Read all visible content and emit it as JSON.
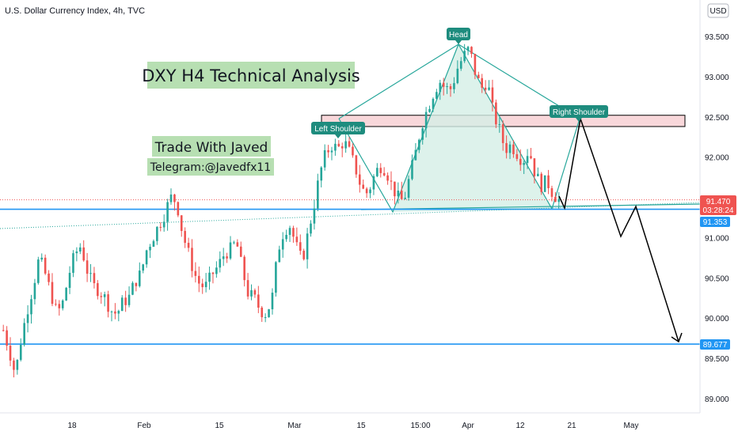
{
  "chart_data": {
    "type": "candlestick",
    "title": "U.S. Dollar Currency Index, 4h, TVC",
    "currency": "USD",
    "x_ticks": [
      "18",
      "Feb",
      "15",
      "Mar",
      "15",
      "15:00",
      "Apr",
      "12",
      "21",
      "May"
    ],
    "y_ticks": [
      "93.500",
      "93.000",
      "92.500",
      "92.000",
      "91.000",
      "90.500",
      "90.000",
      "89.500",
      "89.000"
    ],
    "ylim": [
      88.9,
      93.8
    ],
    "y_tick_values": [
      93.5,
      93.0,
      92.5,
      92.0,
      91.0,
      90.5,
      90.0,
      89.5,
      89.0
    ],
    "price_tags": {
      "current": {
        "price": "91.470",
        "countdown": "03:28:24",
        "color": "#ef5350"
      },
      "support_1": {
        "price": "91.353",
        "color": "#2196f3"
      },
      "support_2": {
        "price": "89.677",
        "color": "#2196f3"
      }
    },
    "pattern": "Head and Shoulders",
    "labels": {
      "head": "Head",
      "left_shoulder": "Left Shoulder",
      "right_shoulder": "Right Shoulder"
    },
    "resistance_zone": [
      92.38,
      92.52
    ],
    "horizontal_levels": [
      91.353,
      89.677
    ],
    "price_path": [
      [
        0,
        89.85
      ],
      [
        1,
        89.6
      ],
      [
        2,
        89.3
      ],
      [
        3,
        89.75
      ],
      [
        4,
        90.1
      ],
      [
        5,
        90.4
      ],
      [
        6,
        90.75
      ],
      [
        7,
        90.55
      ],
      [
        8,
        90.3
      ],
      [
        9,
        90.05
      ],
      [
        10,
        90.2
      ],
      [
        11,
        90.55
      ],
      [
        12,
        90.8
      ],
      [
        13,
        90.9
      ],
      [
        14,
        90.6
      ],
      [
        15,
        90.4
      ],
      [
        16,
        90.35
      ],
      [
        17,
        90.25
      ],
      [
        18,
        90.1
      ],
      [
        19,
        90.05
      ],
      [
        20,
        90.2
      ],
      [
        21,
        90.25
      ],
      [
        22,
        90.45
      ],
      [
        23,
        90.55
      ],
      [
        24,
        90.85
      ],
      [
        25,
        91.0
      ],
      [
        26,
        91.15
      ],
      [
        27,
        91.3
      ],
      [
        28,
        91.5
      ],
      [
        29,
        91.45
      ],
      [
        30,
        91.05
      ],
      [
        31,
        90.8
      ],
      [
        32,
        90.55
      ],
      [
        33,
        90.4
      ],
      [
        34,
        90.4
      ],
      [
        35,
        90.55
      ],
      [
        36,
        90.65
      ],
      [
        37,
        90.8
      ],
      [
        38,
        90.85
      ],
      [
        39,
        90.95
      ],
      [
        40,
        90.6
      ],
      [
        41,
        90.3
      ],
      [
        42,
        90.25
      ],
      [
        43,
        90.1
      ],
      [
        44,
        90.05
      ],
      [
        45,
        90.25
      ],
      [
        46,
        90.85
      ],
      [
        47,
        91.1
      ],
      [
        48,
        91.15
      ],
      [
        49,
        90.9
      ],
      [
        50,
        90.7
      ],
      [
        51,
        91.05
      ],
      [
        52,
        91.4
      ],
      [
        53,
        91.8
      ],
      [
        54,
        92.05
      ],
      [
        55,
        92.15
      ],
      [
        56,
        92.1
      ],
      [
        57,
        92.2
      ],
      [
        58,
        92.05
      ],
      [
        59,
        91.85
      ],
      [
        60,
        91.6
      ],
      [
        61,
        91.55
      ],
      [
        62,
        91.75
      ],
      [
        63,
        91.9
      ],
      [
        64,
        91.85
      ],
      [
        65,
        91.65
      ],
      [
        66,
        91.5
      ],
      [
        67,
        91.45
      ],
      [
        68,
        91.75
      ],
      [
        69,
        92.05
      ],
      [
        70,
        92.4
      ],
      [
        71,
        92.6
      ],
      [
        72,
        92.8
      ],
      [
        73,
        92.95
      ],
      [
        74,
        92.85
      ],
      [
        75,
        92.85
      ],
      [
        76,
        93.1
      ],
      [
        77,
        93.25
      ],
      [
        78,
        93.35
      ],
      [
        79,
        93.05
      ],
      [
        80,
        92.85
      ],
      [
        81,
        92.95
      ],
      [
        82,
        92.55
      ],
      [
        83,
        92.35
      ],
      [
        84,
        92.1
      ],
      [
        85,
        92.15
      ],
      [
        86,
        92.05
      ],
      [
        87,
        91.95
      ],
      [
        88,
        92.1
      ],
      [
        89,
        91.8
      ],
      [
        90,
        91.65
      ],
      [
        91,
        91.7
      ],
      [
        92,
        91.55
      ],
      [
        93,
        91.47
      ]
    ],
    "projection_path": [
      [
        92.2,
        91.38
      ],
      [
        92.48,
        92.45
      ],
      [
        91.7,
        91.0
      ],
      [
        91.4,
        91.38
      ],
      [
        89.68,
        89.7
      ]
    ]
  },
  "overlay": {
    "analysis_title": "DXY H4 Technical Analysis",
    "author": "Trade With Javed",
    "telegram": "Telegram:@Javedfx11"
  },
  "colors": {
    "up": "#26a69a",
    "down": "#ef5350",
    "pattern_line": "#26a69a",
    "pattern_fill": "#d5efe6",
    "label_bg": "#1e8c7e",
    "zone_fill": "#f8d7da",
    "level_line": "#2196f3",
    "overlay_bg": "#b7dfb2"
  }
}
